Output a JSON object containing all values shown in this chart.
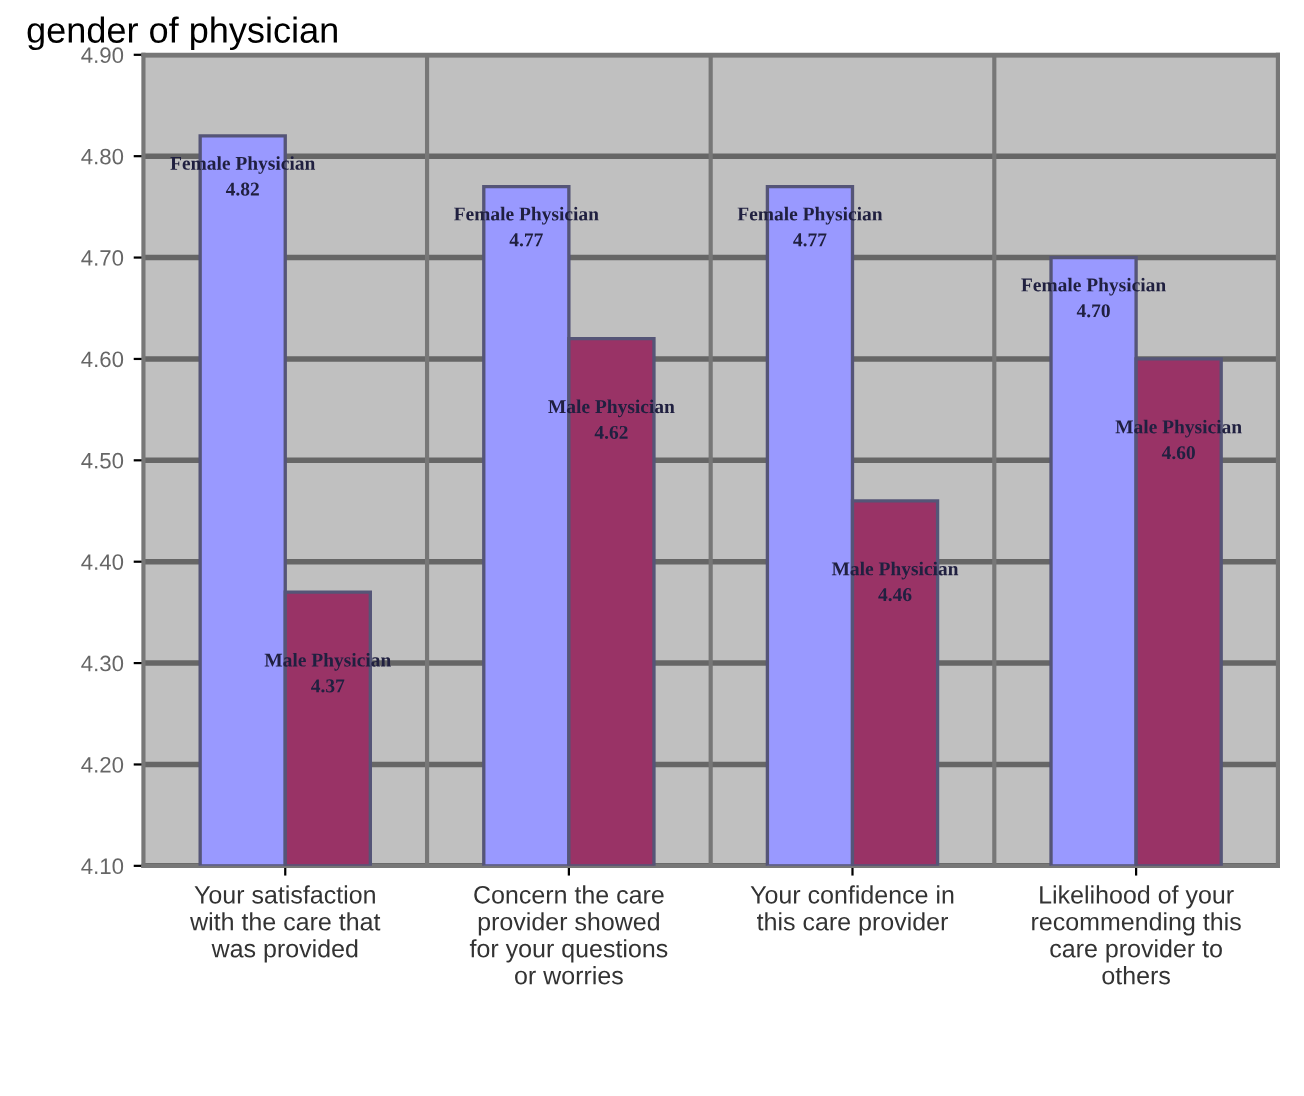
{
  "chart_data": {
    "type": "bar",
    "title": "gender of physician",
    "categories": [
      "Your satisfaction\nwith the care that\nwas provided",
      "Concern the care\nprovider showed\nfor your questions\nor worries",
      "Your confidence in\nthis care provider",
      "Likelihood of your\nrecommending this\ncare provider to\nothers"
    ],
    "series": [
      {
        "name": "Female Physician",
        "color": "#9999ff",
        "values": [
          4.82,
          4.77,
          4.77,
          4.7
        ],
        "value_labels": [
          "4.82",
          "4.77",
          "4.77",
          "4.70"
        ]
      },
      {
        "name": "Male Physician",
        "color": "#993366",
        "values": [
          4.37,
          4.62,
          4.46,
          4.6
        ],
        "value_labels": [
          "4.37",
          "4.62",
          "4.46",
          "4.60"
        ]
      }
    ],
    "ylim": [
      4.1,
      4.9
    ],
    "yticks": [
      {
        "value": 4.1,
        "label": "4.10"
      },
      {
        "value": 4.2,
        "label": "4.20"
      },
      {
        "value": 4.3,
        "label": "4.30"
      },
      {
        "value": 4.4,
        "label": "4.40"
      },
      {
        "value": 4.5,
        "label": "4.50"
      },
      {
        "value": 4.6,
        "label": "4.60"
      },
      {
        "value": 4.7,
        "label": "4.70"
      },
      {
        "value": 4.8,
        "label": "4.80"
      },
      {
        "value": 4.9,
        "label": "4.90"
      }
    ],
    "grid": "y",
    "legend": false
  }
}
